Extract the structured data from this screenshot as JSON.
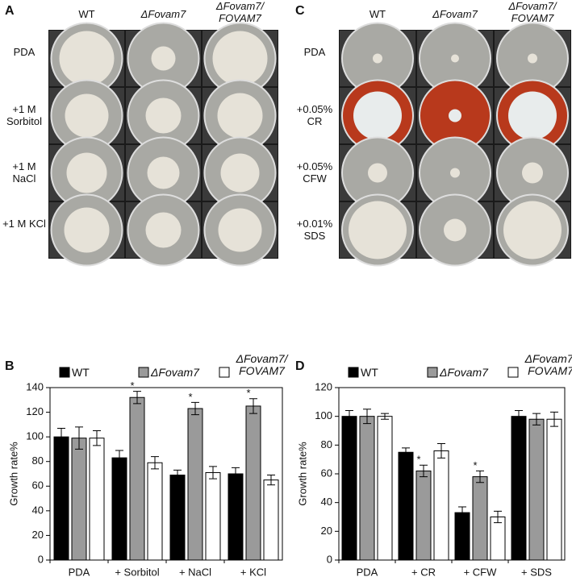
{
  "photo_panels": [
    {
      "label": "A",
      "columns": [
        "WT",
        "ΔFovam7",
        "ΔFovam7/ FOVAM7"
      ],
      "rows": [
        "PDA",
        "+1 M Sorbitol",
        "+1 M NaCl",
        "+1 M KCl"
      ]
    },
    {
      "label": "C",
      "columns": [
        "WT",
        "ΔFovam7",
        "ΔFovam7/ FOVAM7"
      ],
      "rows": [
        "PDA",
        "+0.05% CR",
        "+0.05% CFW",
        "+0.01% SDS"
      ]
    }
  ],
  "chart_data": [
    {
      "type": "bar",
      "panel": "B",
      "y_label": "Growth  rate%",
      "categories": [
        "PDA",
        "+ Sorbitol",
        "+ NaCl",
        "+ KCl"
      ],
      "series": [
        {
          "name": "WT",
          "color": "#000000",
          "values": [
            100,
            83,
            69,
            70
          ],
          "errors": [
            7,
            6,
            4,
            5
          ]
        },
        {
          "name": "ΔFovam7",
          "color": "#9a9a9a",
          "values": [
            99,
            132,
            123,
            125
          ],
          "errors": [
            9,
            5,
            5,
            6
          ],
          "significance": [
            null,
            "*",
            "*",
            "*"
          ]
        },
        {
          "name": "ΔFovam7/ FOVAM7",
          "color": "#ffffff",
          "values": [
            99,
            79,
            71,
            65
          ],
          "errors": [
            6,
            5,
            5,
            4
          ]
        }
      ],
      "ylim": [
        0,
        140
      ],
      "yticks": [
        0,
        20,
        40,
        60,
        80,
        100,
        120,
        140
      ]
    },
    {
      "type": "bar",
      "panel": "D",
      "y_label": "Growth  rate%",
      "categories": [
        "PDA",
        "+ CR",
        "+ CFW",
        "+ SDS"
      ],
      "series": [
        {
          "name": "WT",
          "color": "#000000",
          "values": [
            100,
            75,
            33,
            100
          ],
          "errors": [
            4,
            3,
            4,
            4
          ]
        },
        {
          "name": "ΔFovam7",
          "color": "#9a9a9a",
          "values": [
            100,
            62,
            58,
            98
          ],
          "errors": [
            5,
            4,
            4,
            4
          ],
          "significance": [
            null,
            "*",
            "*",
            null
          ]
        },
        {
          "name": "ΔFovam7/ FOVAM7",
          "color": "#ffffff",
          "values": [
            100,
            76,
            30,
            98
          ],
          "errors": [
            2,
            5,
            4,
            5
          ]
        }
      ],
      "ylim": [
        0,
        120
      ],
      "yticks": [
        0,
        20,
        40,
        60,
        80,
        100,
        120
      ]
    }
  ]
}
